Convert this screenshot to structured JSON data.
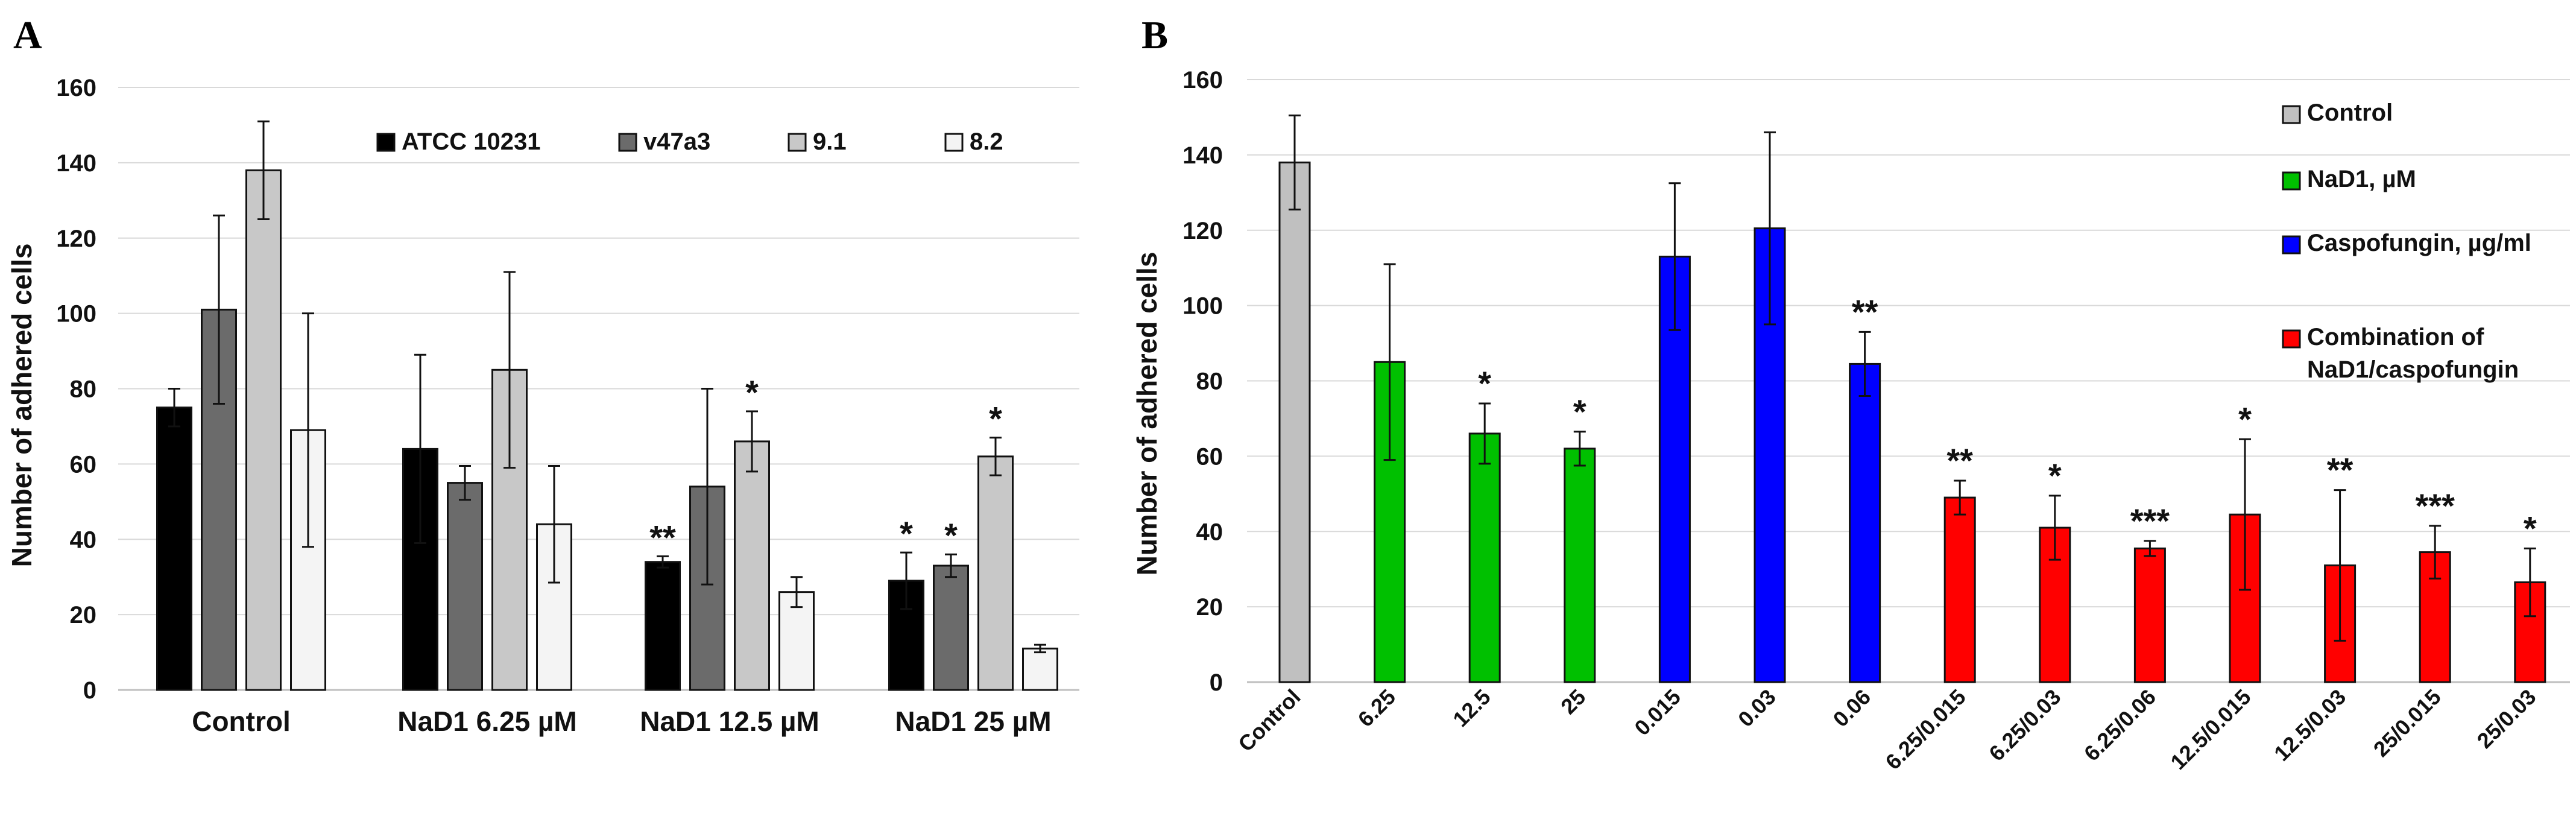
{
  "chart_data": [
    {
      "panel": "A",
      "type": "bar",
      "xlabel": "",
      "ylabel": "Number of adhered cells",
      "ylim": [
        0,
        160
      ],
      "yticks": [
        0,
        20,
        40,
        60,
        80,
        100,
        120,
        140,
        160
      ],
      "grid": true,
      "legend_position": "top",
      "categories": [
        "Control",
        "NaD1 6.25 µM",
        "NaD1 12.5 µM",
        "NaD1 25 µM"
      ],
      "series": [
        {
          "name": "ATCC 10231",
          "color": "#000000",
          "values": [
            75,
            64,
            34,
            29
          ],
          "errors": [
            5,
            25,
            1.5,
            7.5
          ],
          "stars": [
            "",
            "",
            "**",
            "*"
          ]
        },
        {
          "name": "v47a3",
          "color": "#6b6b6b",
          "values": [
            101,
            55,
            54,
            33
          ],
          "errors": [
            25,
            4.5,
            26,
            3
          ],
          "stars": [
            "",
            "",
            "",
            "*"
          ]
        },
        {
          "name": "9.1",
          "color": "#c8c8c8",
          "values": [
            138,
            85,
            66,
            62
          ],
          "errors": [
            13,
            26,
            8,
            5
          ],
          "stars": [
            "",
            "",
            "*",
            "*"
          ]
        },
        {
          "name": "8.2",
          "color": "#f4f4f4",
          "values": [
            69,
            44,
            26,
            11
          ],
          "errors": [
            31,
            15.5,
            4,
            1
          ],
          "stars": [
            "",
            "",
            "",
            ""
          ]
        }
      ]
    },
    {
      "panel": "B",
      "type": "bar",
      "xlabel": "",
      "ylabel": "Number of adhered cells",
      "ylim": [
        0,
        160
      ],
      "yticks": [
        0,
        20,
        40,
        60,
        80,
        100,
        120,
        140,
        160
      ],
      "grid": true,
      "legend_position": "right",
      "legend": [
        {
          "label": "Control",
          "color": "#c0c0c0"
        },
        {
          "label": "NaD1, µM",
          "color": "#00c000"
        },
        {
          "label": "Caspofungin, µg/ml",
          "color": "#0000ff"
        },
        {
          "label": "Combination of NaD1/caspofungin",
          "lines": [
            "Combination of",
            "NaD1/caspofungin"
          ],
          "color": "#ff0000"
        }
      ],
      "categories": [
        "Control",
        "6.25",
        "12.5",
        "25",
        "0.015",
        "0.03",
        "0.06",
        "6.25/0.015",
        "6.25/0.03",
        "6.25/0.06",
        "12.5/0.015",
        "12.5/0.03",
        "25/0.015",
        "25/0.03"
      ],
      "groups": [
        "Control",
        "NaD1",
        "NaD1",
        "NaD1",
        "Caspofungin",
        "Caspofungin",
        "Caspofungin",
        "Combination",
        "Combination",
        "Combination",
        "Combination",
        "Combination",
        "Combination",
        "Combination"
      ],
      "values": [
        138,
        85,
        66,
        62,
        113,
        120.5,
        84.5,
        49,
        41,
        35.5,
        44.5,
        31,
        34.5,
        26.5
      ],
      "errors": [
        12.5,
        26,
        8,
        4.5,
        19.5,
        25.5,
        8.5,
        4.5,
        8.5,
        2,
        20,
        20,
        7,
        9
      ],
      "stars": [
        "",
        "",
        "*",
        "*",
        "",
        "",
        "**",
        "**",
        "*",
        "***",
        "*",
        "**",
        "***",
        "*"
      ]
    }
  ]
}
